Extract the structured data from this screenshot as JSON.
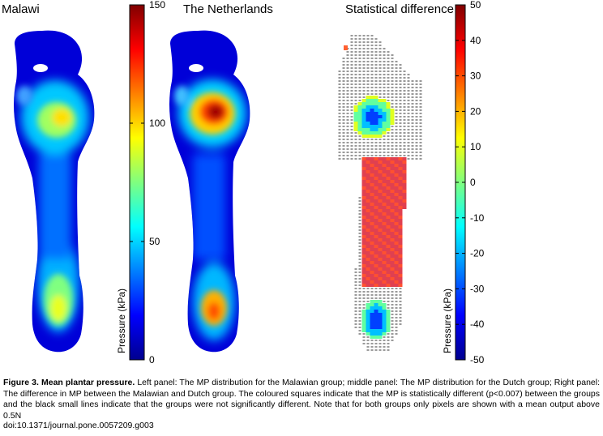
{
  "figure": {
    "panels": [
      {
        "title": "Malawi",
        "colorbar_ticks": [
          "150",
          "100",
          "50",
          "0"
        ],
        "colorbar_label": "Pressure (kPa)"
      },
      {
        "title": "The Netherlands"
      },
      {
        "title": "Statistical difference",
        "colorbar_ticks": [
          "50",
          "40",
          "30",
          "20",
          "10",
          "0",
          "-10",
          "-20",
          "-30",
          "-40",
          "-50"
        ],
        "colorbar_label": "Pressure (kPa)"
      }
    ]
  },
  "caption": {
    "label": "Figure 3. Mean plantar pressure.",
    "text": " Left panel: The MP distribution for the Malawian group; middle panel: The MP distribution for the Dutch group; Right panel: The difference in MP between the Malawian and Dutch group. The coloured squares indicate that the MP is statistically different (p<0.007) between the groups and the black small lines indicate that the groups were not significantly different. Note that for both groups only pixels are shown with a mean output above 0.5N",
    "doi": "doi:10.1371/journal.pone.0057209.g003"
  },
  "colors": {
    "jet_dark_blue": "#00008f",
    "jet_blue": "#0000ff",
    "jet_cyan": "#00ffff",
    "jet_yellow": "#ffff00",
    "jet_red": "#ff0000",
    "jet_dark_red": "#800000"
  }
}
